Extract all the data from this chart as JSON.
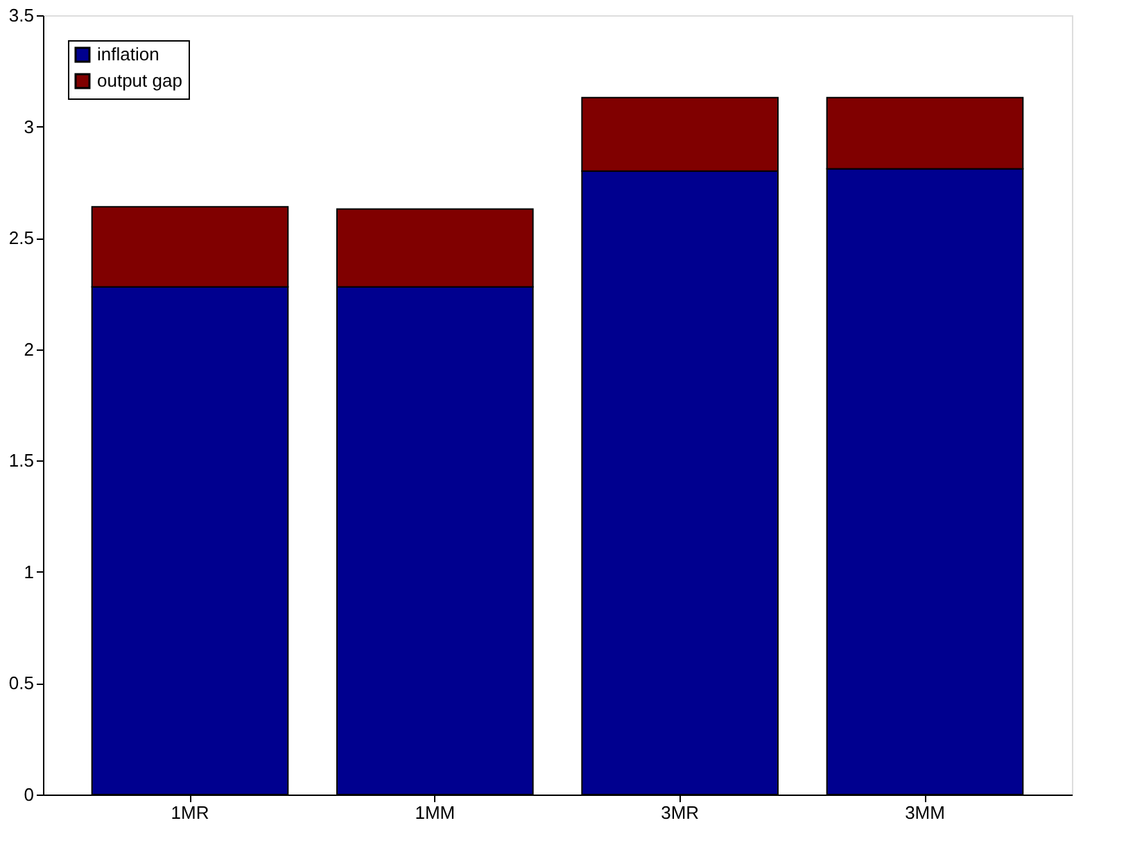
{
  "chart_data": {
    "type": "bar",
    "stacked": true,
    "categories": [
      "1MR",
      "1MM",
      "3MR",
      "3MM"
    ],
    "series": [
      {
        "name": "inflation",
        "color": "#00008f",
        "values": [
          2.28,
          2.28,
          2.8,
          2.81
        ]
      },
      {
        "name": "output gap",
        "color": "#800000",
        "values": [
          0.36,
          0.35,
          0.33,
          0.32
        ]
      }
    ],
    "ylim": [
      0,
      3.5
    ],
    "yticks": [
      0,
      0.5,
      1,
      1.5,
      2,
      2.5,
      3,
      3.5
    ],
    "grid": false,
    "legend": "top left"
  }
}
